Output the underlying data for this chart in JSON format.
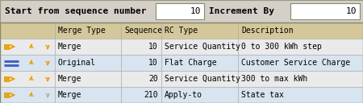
{
  "title_bar_bg": "#d4d0c8",
  "title_bar_border": "#999980",
  "title_label1": "Start from sequence number",
  "title_box1_value": "10",
  "title_label2": "Increment By",
  "title_box2_value": "10",
  "header_bg": "#d4c89a",
  "row_bg_odd": "#eaeaea",
  "row_bg_even": "#d8e4f0",
  "row_text_color": "#000000",
  "header_text_color": "#000000",
  "icon_orange": "#e8a000",
  "icon_blue": "#4466bb",
  "icon_gray": "#b0b0b0",
  "rows": [
    [
      "Merge",
      "10",
      "Service Quantity",
      "0 to 300 kWh step",
      "merge",
      "orange",
      "orange"
    ],
    [
      "Original",
      "10",
      "Flat Charge",
      "Customer Service Charge",
      "original",
      "orange",
      "orange"
    ],
    [
      "Merge",
      "20",
      "Service Quantity",
      "300 to max kWh",
      "merge",
      "orange",
      "orange"
    ],
    [
      "Merge",
      "210",
      "Apply-to",
      "State tax",
      "merge",
      "orange",
      "gray"
    ]
  ],
  "figsize": [
    4.5,
    1.28
  ],
  "dpi": 100,
  "font_size": 7.0,
  "title_font_size": 8.0
}
